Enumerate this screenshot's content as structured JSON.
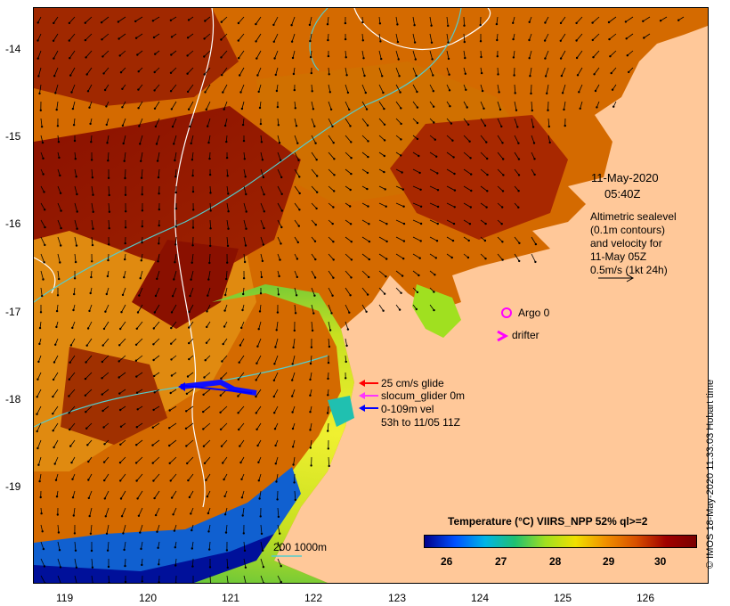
{
  "map": {
    "latitude_labels": [
      "-14",
      "-15",
      "-16",
      "-17",
      "-18",
      "-19"
    ],
    "longitude_labels": [
      "119",
      "120",
      "121",
      "122",
      "123",
      "124",
      "125",
      "126"
    ]
  },
  "annotations": {
    "date_line1": "11-May-2020",
    "date_line2": "05:40Z",
    "altimetry_lines": [
      "Altimetric sealevel",
      "(0.1m contours)",
      "and velocity for",
      "11-May 05Z",
      "0.5m/s (1kt 24h)"
    ]
  },
  "legend": {
    "argo": "Argo 0",
    "drifter": "drifter",
    "glide": "25 cm/s glide",
    "glider": "slocum_glider 0m",
    "vel_line1": "0-109m vel",
    "vel_line2": "53h to 11/05 11Z",
    "depth": "200  1000m",
    "colors": {
      "glide": "#ff0000",
      "glider": "#ff33ff",
      "vel": "#0000ff",
      "argo": "#ff00ff",
      "drifter": "#ff00ff",
      "contour": "#55cccc"
    }
  },
  "colorbar": {
    "title": "Temperature (°C) VIIRS_NPP 52% ql>=2",
    "ticks": [
      "26",
      "27",
      "28",
      "29",
      "30"
    ],
    "colors": [
      "#00008b",
      "#0050ff",
      "#00b4e6",
      "#20c070",
      "#a0e020",
      "#f0e000",
      "#f09000",
      "#d85000",
      "#a00000",
      "#7a0000"
    ]
  },
  "copyright": "© IMOS 18-May-2020 11:33:03 Hobart time"
}
